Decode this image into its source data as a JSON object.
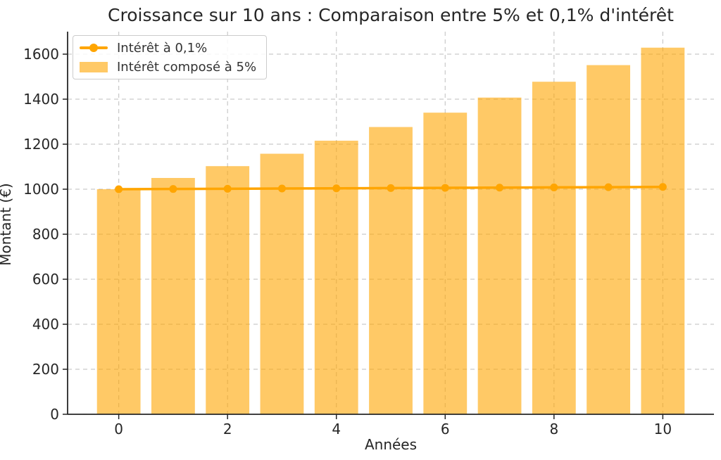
{
  "figure": {
    "title": "Croissance sur 10 ans : Comparaison entre 5% et 0,1% d'intérêt",
    "background_color": "#FFFFFF",
    "text_color": "#262626",
    "grid_color": "#C9C9C9",
    "spine_color": "#262626"
  },
  "legend": {
    "position": "upper left",
    "border_color": "#CCCCCC"
  },
  "chart_data": {
    "type": "bar",
    "title": "Croissance sur 10 ans : Comparaison entre 5% et 0,1% d'intérêt",
    "xlabel": "Années",
    "ylabel": "Montant (€)",
    "x": [
      0,
      1,
      2,
      3,
      4,
      5,
      6,
      7,
      8,
      9,
      10
    ],
    "series": [
      {
        "name": "Intérêt à 0,1%",
        "kind": "line",
        "color": "#FFA500",
        "values": [
          1000,
          1001,
          1002,
          1003.01,
          1004.01,
          1005.02,
          1006.03,
          1007.03,
          1008.04,
          1009.05,
          1010.05
        ]
      },
      {
        "name": "Intérêt composé à 5%",
        "kind": "bar",
        "color": "#FFA500",
        "bar_alpha": 0.6,
        "values": [
          1000,
          1050,
          1102.5,
          1157.63,
          1215.51,
          1276.28,
          1340.1,
          1407.1,
          1477.46,
          1551.33,
          1628.89
        ]
      }
    ],
    "xticks": [
      0,
      2,
      4,
      6,
      8,
      10
    ],
    "yticks": [
      0,
      200,
      400,
      600,
      800,
      1000,
      1200,
      1400,
      1600
    ],
    "xlim": [
      -0.94,
      10.94
    ],
    "ylim": [
      0,
      1700
    ],
    "bar_width": 0.8,
    "grid": true,
    "grid_style": "dashed",
    "legend_position": "upper left"
  }
}
